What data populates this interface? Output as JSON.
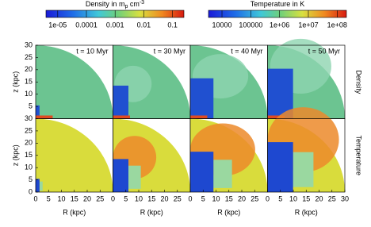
{
  "colorbars": [
    {
      "title": "Density in m",
      "title_sub": "p",
      "title_mid": " cm",
      "title_sup": "-3",
      "log": true,
      "lim": [
        3.9e-06,
        0.25
      ],
      "ticks": [
        {
          "value": 1e-05,
          "label": "1e-05"
        },
        0.0001,
        0.001,
        0.01,
        0.1
      ]
    },
    {
      "title": "Temperature in K",
      "log": true,
      "lim": [
        3400,
        210000000
      ],
      "ticks": [
        10000,
        100000,
        {
          "value": 1000000,
          "label": "1e+06"
        },
        {
          "value": 10000000,
          "label": "1e+07"
        },
        {
          "value": 100000000,
          "label": "1e+08"
        }
      ]
    }
  ],
  "panels": {
    "times": [
      "t = 10 Myr",
      "t = 30 Myr",
      "t = 40 Myr",
      "t = 50 Myr"
    ],
    "rows": [
      "Density",
      "Temperature"
    ],
    "xlabel": "R (kpc)",
    "ylabel": "z (kpc)",
    "xlim": [
      0,
      30
    ],
    "ylim": [
      0,
      30
    ],
    "xticks": [
      [
        0,
        5,
        10,
        15,
        20,
        25
      ],
      [
        0,
        5,
        10,
        15,
        20,
        25
      ],
      [
        0,
        5,
        10,
        15,
        20,
        25
      ],
      [
        0,
        5,
        10,
        15,
        20,
        25,
        30
      ]
    ],
    "yticks": [
      [
        5,
        10,
        15,
        20,
        25,
        30
      ],
      [
        0,
        5,
        10,
        15,
        20,
        25,
        30
      ]
    ]
  }
}
